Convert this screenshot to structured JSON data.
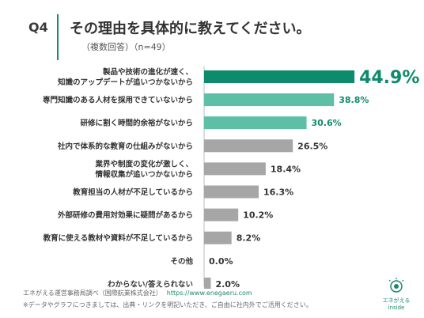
{
  "header": {
    "question": "Q4",
    "title": "その理由を具体的に教えてください。",
    "subtitle": "（複数回答）（n=49）"
  },
  "chart_data": {
    "type": "bar",
    "orientation": "horizontal",
    "categories": [
      "製品や技術の進化が速く、\n知識のアップデートが追いつかないから",
      "専門知識のある人材を採用できていないから",
      "研修に割く時間的余裕がないから",
      "社内で体系的な教育の仕組みがないから",
      "業界や制度の変化が激しく、\n情報収集が追いつかないから",
      "教育担当の人材が不足しているから",
      "外部研修の費用対効果に疑問があるから",
      "教育に使える教材や資料が不足しているから",
      "その他",
      "わからない/答えられない"
    ],
    "values": [
      44.9,
      38.8,
      30.6,
      26.5,
      18.4,
      16.3,
      10.2,
      8.2,
      0.0,
      2.0
    ],
    "value_labels": [
      "44.9%",
      "38.8%",
      "30.6%",
      "26.5%",
      "18.4%",
      "16.3%",
      "10.2%",
      "8.2%",
      "0.0%",
      "2.0%"
    ],
    "xlim": [
      0,
      50
    ],
    "colors": {
      "top": "#0e8a6c",
      "high": "#5cbfa6",
      "other": "#a6a6a6",
      "label_top": "#0e8a6c",
      "label_high": "#0e8a6c",
      "label_other": "#333333"
    },
    "color_groups": [
      "top",
      "high",
      "high",
      "other",
      "other",
      "other",
      "other",
      "other",
      "other",
      "other"
    ]
  },
  "footer": {
    "source": "エネがえる運営事務局調べ（国際航業株式会社）",
    "url": "https://www.enegaeru.com",
    "note": "※データやグラフにつきましては、出典・リンクを明記いただき、ご自由に社内外でご活用ください。"
  },
  "logo": {
    "line1": "エネがえる",
    "line2": "inside",
    "color": "#1b8a6b"
  }
}
